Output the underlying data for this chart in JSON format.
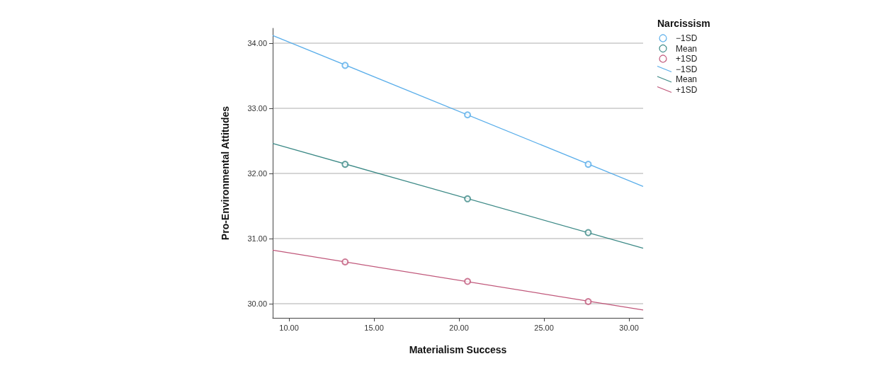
{
  "chart_data": {
    "type": "scatter",
    "xlabel": "Materialism Success",
    "ylabel": "Pro-Environmental Attitudes",
    "legend_title": "Narcissism",
    "legend": "top right",
    "grid": "y",
    "marker": "circle",
    "xlim": [
      9.04,
      30.83
    ],
    "ylim": [
      29.78,
      34.23
    ],
    "xticks": [
      {
        "value": 10,
        "label": "10.00"
      },
      {
        "value": 15,
        "label": "15.00"
      },
      {
        "value": 20,
        "label": "20.00"
      },
      {
        "value": 25,
        "label": "25.00"
      },
      {
        "value": 30,
        "label": "30.00"
      }
    ],
    "yticks": [
      {
        "value": 30,
        "label": "30.00"
      },
      {
        "value": 31,
        "label": "31.00"
      },
      {
        "value": 32,
        "label": "32.00"
      },
      {
        "value": 33,
        "label": "33.00"
      },
      {
        "value": 34,
        "label": "34.00"
      }
    ],
    "series": [
      {
        "name": "−1SD",
        "color": "#5aaeea",
        "x": [
          13.3,
          20.5,
          27.6
        ],
        "values": [
          33.66,
          32.9,
          32.14
        ]
      },
      {
        "name": "Mean",
        "color": "#3d8a87",
        "x": [
          13.3,
          20.5,
          27.6
        ],
        "values": [
          32.14,
          31.61,
          31.09
        ]
      },
      {
        "name": "+1SD",
        "color": "#c0577a",
        "x": [
          13.3,
          20.5,
          27.6
        ],
        "values": [
          30.64,
          30.34,
          30.03
        ]
      },
      {
        "name": "−1SD",
        "type": "line",
        "marker": "none",
        "color": "#5aaeea",
        "x": [
          9.04,
          30.83
        ],
        "values": [
          34.12,
          31.8
        ]
      },
      {
        "name": "Mean",
        "type": "line",
        "marker": "none",
        "color": "#3d8a87",
        "x": [
          9.04,
          30.83
        ],
        "values": [
          32.46,
          30.85
        ]
      },
      {
        "name": "+1SD",
        "type": "line",
        "marker": "none",
        "color": "#c0577a",
        "x": [
          9.04,
          30.83
        ],
        "values": [
          30.82,
          29.9
        ]
      }
    ]
  }
}
